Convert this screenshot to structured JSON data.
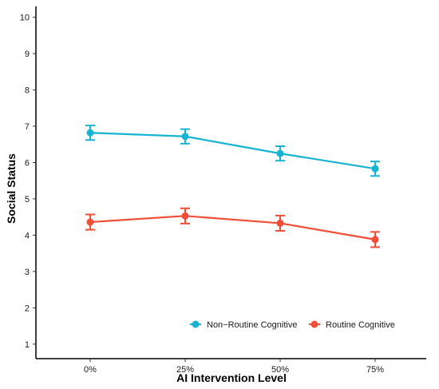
{
  "chart_data": {
    "type": "line",
    "title": "",
    "xlabel": "AI Intervention Level",
    "ylabel": "Social Status",
    "categories": [
      "0%",
      "25%",
      "50%",
      "75%"
    ],
    "yticks": [
      1,
      2,
      3,
      4,
      5,
      6,
      7,
      8,
      9,
      10
    ],
    "ylim": [
      0.6,
      10.3
    ],
    "grid": false,
    "legend_position": "bottom-right",
    "series": [
      {
        "name": "Non−Routine Cognitive",
        "color": "#17b4d1",
        "values": [
          6.82,
          6.72,
          6.25,
          5.83
        ],
        "error": [
          0.2,
          0.2,
          0.2,
          0.2
        ]
      },
      {
        "name": "Routine Cognitive",
        "color": "#f04e36",
        "values": [
          4.36,
          4.53,
          4.33,
          3.88
        ],
        "error": [
          0.21,
          0.21,
          0.21,
          0.21
        ]
      }
    ]
  }
}
